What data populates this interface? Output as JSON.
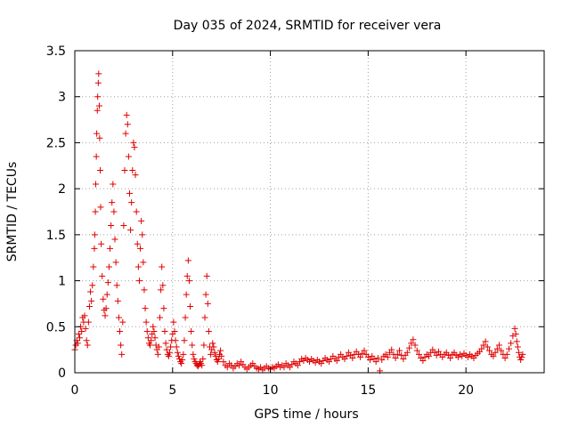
{
  "chart_data": {
    "type": "scatter",
    "title": "Day 035 of 2024, SRMTID for receiver vera",
    "xlabel": "GPS time / hours",
    "ylabel": "SRMTID / TECUs",
    "xlim": [
      0,
      24
    ],
    "ylim": [
      0,
      3.5
    ],
    "x_ticks": [
      "0",
      "5",
      "10",
      "15",
      "20"
    ],
    "x_tick_values": [
      0,
      5,
      10,
      15,
      20
    ],
    "y_ticks": [
      "0",
      "0.5",
      "1",
      "1.5",
      "2",
      "2.5",
      "3",
      "3.5"
    ],
    "y_tick_values": [
      0,
      0.5,
      1,
      1.5,
      2,
      2.5,
      3,
      3.5
    ],
    "grid": true,
    "marker": "+",
    "color": "#e00000",
    "series": [
      {
        "name": "SRMTID",
        "points": [
          [
            0.0,
            0.25
          ],
          [
            0.05,
            0.3
          ],
          [
            0.1,
            0.35
          ],
          [
            0.15,
            0.32
          ],
          [
            0.2,
            0.42
          ],
          [
            0.25,
            0.38
          ],
          [
            0.3,
            0.5
          ],
          [
            0.35,
            0.45
          ],
          [
            0.4,
            0.6
          ],
          [
            0.45,
            0.55
          ],
          [
            0.5,
            0.62
          ],
          [
            0.55,
            0.48
          ],
          [
            0.6,
            0.35
          ],
          [
            0.65,
            0.3
          ],
          [
            0.7,
            0.55
          ],
          [
            0.75,
            0.72
          ],
          [
            0.8,
            0.88
          ],
          [
            0.85,
            0.78
          ],
          [
            0.9,
            0.95
          ],
          [
            0.95,
            1.15
          ],
          [
            1.0,
            1.35
          ],
          [
            1.02,
            1.5
          ],
          [
            1.05,
            1.75
          ],
          [
            1.07,
            2.05
          ],
          [
            1.1,
            2.35
          ],
          [
            1.12,
            2.6
          ],
          [
            1.15,
            2.85
          ],
          [
            1.17,
            3.0
          ],
          [
            1.2,
            3.15
          ],
          [
            1.22,
            3.25
          ],
          [
            1.25,
            2.9
          ],
          [
            1.27,
            2.55
          ],
          [
            1.3,
            2.2
          ],
          [
            1.32,
            1.8
          ],
          [
            1.35,
            1.4
          ],
          [
            1.4,
            1.05
          ],
          [
            1.45,
            0.8
          ],
          [
            1.5,
            0.68
          ],
          [
            1.55,
            0.62
          ],
          [
            1.6,
            0.7
          ],
          [
            1.65,
            0.85
          ],
          [
            1.7,
            0.98
          ],
          [
            1.75,
            1.15
          ],
          [
            1.8,
            1.35
          ],
          [
            1.85,
            1.6
          ],
          [
            1.9,
            1.85
          ],
          [
            1.95,
            2.05
          ],
          [
            2.0,
            1.75
          ],
          [
            2.05,
            1.45
          ],
          [
            2.1,
            1.2
          ],
          [
            2.15,
            0.95
          ],
          [
            2.2,
            0.78
          ],
          [
            2.25,
            0.6
          ],
          [
            2.3,
            0.45
          ],
          [
            2.35,
            0.3
          ],
          [
            2.4,
            0.2
          ],
          [
            2.45,
            0.55
          ],
          [
            2.5,
            1.6
          ],
          [
            2.55,
            2.2
          ],
          [
            2.6,
            2.6
          ],
          [
            2.65,
            2.8
          ],
          [
            2.7,
            2.7
          ],
          [
            2.75,
            2.35
          ],
          [
            2.8,
            1.95
          ],
          [
            2.85,
            1.55
          ],
          [
            2.9,
            1.85
          ],
          [
            2.95,
            2.2
          ],
          [
            3.0,
            2.5
          ],
          [
            3.05,
            2.45
          ],
          [
            3.1,
            2.15
          ],
          [
            3.15,
            1.75
          ],
          [
            3.2,
            1.4
          ],
          [
            3.25,
            1.15
          ],
          [
            3.3,
            1.0
          ],
          [
            3.35,
            1.35
          ],
          [
            3.4,
            1.65
          ],
          [
            3.45,
            1.5
          ],
          [
            3.5,
            1.2
          ],
          [
            3.55,
            0.9
          ],
          [
            3.6,
            0.7
          ],
          [
            3.65,
            0.55
          ],
          [
            3.7,
            0.45
          ],
          [
            3.75,
            0.38
          ],
          [
            3.8,
            0.32
          ],
          [
            3.85,
            0.3
          ],
          [
            3.9,
            0.35
          ],
          [
            3.95,
            0.42
          ],
          [
            4.0,
            0.5
          ],
          [
            4.05,
            0.45
          ],
          [
            4.1,
            0.38
          ],
          [
            4.15,
            0.3
          ],
          [
            4.2,
            0.25
          ],
          [
            4.25,
            0.2
          ],
          [
            4.3,
            0.28
          ],
          [
            4.35,
            0.6
          ],
          [
            4.4,
            0.9
          ],
          [
            4.45,
            1.15
          ],
          [
            4.5,
            0.95
          ],
          [
            4.55,
            0.7
          ],
          [
            4.6,
            0.45
          ],
          [
            4.65,
            0.32
          ],
          [
            4.7,
            0.25
          ],
          [
            4.75,
            0.2
          ],
          [
            4.8,
            0.18
          ],
          [
            4.85,
            0.22
          ],
          [
            4.9,
            0.28
          ],
          [
            4.95,
            0.35
          ],
          [
            5.0,
            0.42
          ],
          [
            5.05,
            0.55
          ],
          [
            5.1,
            0.45
          ],
          [
            5.15,
            0.35
          ],
          [
            5.2,
            0.28
          ],
          [
            5.25,
            0.22
          ],
          [
            5.3,
            0.18
          ],
          [
            5.35,
            0.15
          ],
          [
            5.4,
            0.12
          ],
          [
            5.45,
            0.1
          ],
          [
            5.5,
            0.14
          ],
          [
            5.55,
            0.2
          ],
          [
            5.6,
            0.35
          ],
          [
            5.65,
            0.6
          ],
          [
            5.7,
            0.85
          ],
          [
            5.75,
            1.05
          ],
          [
            5.8,
            1.22
          ],
          [
            5.85,
            1.0
          ],
          [
            5.9,
            0.72
          ],
          [
            5.95,
            0.45
          ],
          [
            6.0,
            0.3
          ],
          [
            6.05,
            0.2
          ],
          [
            6.1,
            0.15
          ],
          [
            6.15,
            0.12
          ],
          [
            6.2,
            0.1
          ],
          [
            6.25,
            0.08
          ],
          [
            6.3,
            0.07
          ],
          [
            6.35,
            0.09
          ],
          [
            6.4,
            0.12
          ],
          [
            6.45,
            0.1
          ],
          [
            6.5,
            0.08
          ],
          [
            6.55,
            0.15
          ],
          [
            6.6,
            0.3
          ],
          [
            6.65,
            0.6
          ],
          [
            6.7,
            0.85
          ],
          [
            6.75,
            1.05
          ],
          [
            6.8,
            0.75
          ],
          [
            6.85,
            0.45
          ],
          [
            6.9,
            0.28
          ],
          [
            6.95,
            0.2
          ],
          [
            7.0,
            0.25
          ],
          [
            7.05,
            0.32
          ],
          [
            7.1,
            0.28
          ],
          [
            7.15,
            0.22
          ],
          [
            7.2,
            0.18
          ],
          [
            7.25,
            0.14
          ],
          [
            7.3,
            0.12
          ],
          [
            7.35,
            0.15
          ],
          [
            7.4,
            0.2
          ],
          [
            7.45,
            0.24
          ],
          [
            7.5,
            0.18
          ],
          [
            7.6,
            0.12
          ],
          [
            7.7,
            0.08
          ],
          [
            7.8,
            0.06
          ],
          [
            7.9,
            0.1
          ],
          [
            8.0,
            0.08
          ],
          [
            8.1,
            0.05
          ],
          [
            8.2,
            0.07
          ],
          [
            8.3,
            0.1
          ],
          [
            8.4,
            0.08
          ],
          [
            8.5,
            0.12
          ],
          [
            8.6,
            0.09
          ],
          [
            8.7,
            0.06
          ],
          [
            8.8,
            0.04
          ],
          [
            8.9,
            0.06
          ],
          [
            9.0,
            0.08
          ],
          [
            9.1,
            0.1
          ],
          [
            9.2,
            0.07
          ],
          [
            9.3,
            0.05
          ],
          [
            9.4,
            0.04
          ],
          [
            9.5,
            0.06
          ],
          [
            9.6,
            0.03
          ],
          [
            9.7,
            0.05
          ],
          [
            9.8,
            0.07
          ],
          [
            9.9,
            0.05
          ],
          [
            10.0,
            0.04
          ],
          [
            10.1,
            0.06
          ],
          [
            10.2,
            0.05
          ],
          [
            10.3,
            0.07
          ],
          [
            10.4,
            0.09
          ],
          [
            10.5,
            0.06
          ],
          [
            10.6,
            0.08
          ],
          [
            10.7,
            0.06
          ],
          [
            10.8,
            0.1
          ],
          [
            10.9,
            0.08
          ],
          [
            11.0,
            0.06
          ],
          [
            11.1,
            0.09
          ],
          [
            11.2,
            0.12
          ],
          [
            11.3,
            0.1
          ],
          [
            11.4,
            0.08
          ],
          [
            11.5,
            0.12
          ],
          [
            11.6,
            0.15
          ],
          [
            11.7,
            0.13
          ],
          [
            11.8,
            0.16
          ],
          [
            11.9,
            0.14
          ],
          [
            12.0,
            0.12
          ],
          [
            12.1,
            0.15
          ],
          [
            12.2,
            0.13
          ],
          [
            12.3,
            0.11
          ],
          [
            12.4,
            0.14
          ],
          [
            12.5,
            0.12
          ],
          [
            12.6,
            0.1
          ],
          [
            12.7,
            0.13
          ],
          [
            12.8,
            0.16
          ],
          [
            12.9,
            0.14
          ],
          [
            13.0,
            0.12
          ],
          [
            13.1,
            0.15
          ],
          [
            13.2,
            0.18
          ],
          [
            13.3,
            0.15
          ],
          [
            13.4,
            0.13
          ],
          [
            13.5,
            0.17
          ],
          [
            13.6,
            0.2
          ],
          [
            13.7,
            0.17
          ],
          [
            13.8,
            0.15
          ],
          [
            13.9,
            0.18
          ],
          [
            14.0,
            0.22
          ],
          [
            14.1,
            0.19
          ],
          [
            14.2,
            0.16
          ],
          [
            14.3,
            0.2
          ],
          [
            14.4,
            0.23
          ],
          [
            14.5,
            0.2
          ],
          [
            14.6,
            0.17
          ],
          [
            14.7,
            0.21
          ],
          [
            14.8,
            0.24
          ],
          [
            14.9,
            0.2
          ],
          [
            15.0,
            0.17
          ],
          [
            15.1,
            0.14
          ],
          [
            15.2,
            0.18
          ],
          [
            15.3,
            0.15
          ],
          [
            15.4,
            0.12
          ],
          [
            15.5,
            0.16
          ],
          [
            15.6,
            0.02
          ],
          [
            15.7,
            0.14
          ],
          [
            15.8,
            0.18
          ],
          [
            15.9,
            0.2
          ],
          [
            16.0,
            0.17
          ],
          [
            16.1,
            0.22
          ],
          [
            16.2,
            0.25
          ],
          [
            16.3,
            0.2
          ],
          [
            16.4,
            0.16
          ],
          [
            16.5,
            0.2
          ],
          [
            16.6,
            0.24
          ],
          [
            16.7,
            0.19
          ],
          [
            16.8,
            0.15
          ],
          [
            16.9,
            0.19
          ],
          [
            17.0,
            0.22
          ],
          [
            17.1,
            0.27
          ],
          [
            17.2,
            0.32
          ],
          [
            17.3,
            0.36
          ],
          [
            17.4,
            0.3
          ],
          [
            17.5,
            0.24
          ],
          [
            17.6,
            0.2
          ],
          [
            17.7,
            0.16
          ],
          [
            17.8,
            0.13
          ],
          [
            17.9,
            0.17
          ],
          [
            18.0,
            0.2
          ],
          [
            18.1,
            0.18
          ],
          [
            18.2,
            0.22
          ],
          [
            18.3,
            0.25
          ],
          [
            18.4,
            0.22
          ],
          [
            18.5,
            0.19
          ],
          [
            18.6,
            0.23
          ],
          [
            18.7,
            0.2
          ],
          [
            18.8,
            0.17
          ],
          [
            18.9,
            0.2
          ],
          [
            19.0,
            0.22
          ],
          [
            19.1,
            0.19
          ],
          [
            19.2,
            0.16
          ],
          [
            19.3,
            0.2
          ],
          [
            19.4,
            0.22
          ],
          [
            19.5,
            0.19
          ],
          [
            19.6,
            0.17
          ],
          [
            19.7,
            0.2
          ],
          [
            19.8,
            0.18
          ],
          [
            19.9,
            0.21
          ],
          [
            20.0,
            0.19
          ],
          [
            20.1,
            0.17
          ],
          [
            20.2,
            0.2
          ],
          [
            20.3,
            0.18
          ],
          [
            20.4,
            0.16
          ],
          [
            20.5,
            0.19
          ],
          [
            20.6,
            0.21
          ],
          [
            20.7,
            0.23
          ],
          [
            20.8,
            0.26
          ],
          [
            20.9,
            0.3
          ],
          [
            21.0,
            0.34
          ],
          [
            21.1,
            0.28
          ],
          [
            21.2,
            0.24
          ],
          [
            21.3,
            0.2
          ],
          [
            21.4,
            0.18
          ],
          [
            21.5,
            0.22
          ],
          [
            21.6,
            0.26
          ],
          [
            21.7,
            0.3
          ],
          [
            21.8,
            0.24
          ],
          [
            21.9,
            0.2
          ],
          [
            22.0,
            0.16
          ],
          [
            22.1,
            0.2
          ],
          [
            22.2,
            0.26
          ],
          [
            22.3,
            0.32
          ],
          [
            22.4,
            0.4
          ],
          [
            22.5,
            0.48
          ],
          [
            22.55,
            0.42
          ],
          [
            22.6,
            0.34
          ],
          [
            22.65,
            0.28
          ],
          [
            22.7,
            0.22
          ],
          [
            22.75,
            0.17
          ],
          [
            22.8,
            0.14
          ],
          [
            22.85,
            0.17
          ],
          [
            22.9,
            0.2
          ]
        ]
      }
    ]
  }
}
